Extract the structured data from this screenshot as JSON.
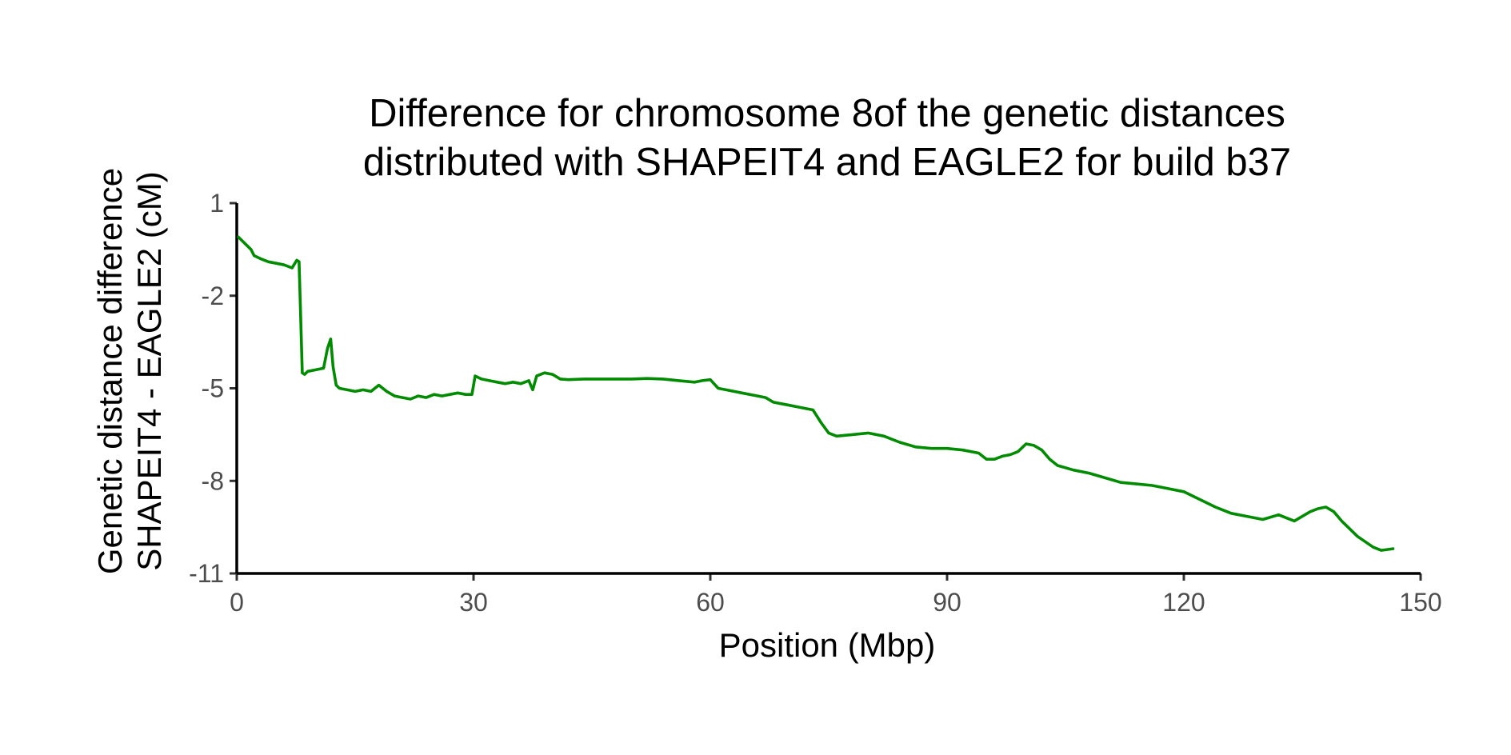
{
  "chart_data": {
    "type": "line",
    "title": [
      "Difference for chromosome 8of the genetic distances",
      "distributed with SHAPEIT4 and EAGLE2 for build b37"
    ],
    "xlabel": "Position (Mbp)",
    "ylabel": [
      "Genetic distance difference",
      "SHAPEIT4 - EAGLE2 (cM)"
    ],
    "xlim": [
      0,
      150
    ],
    "ylim": [
      -11,
      1
    ],
    "xticks": [
      0,
      30,
      60,
      90,
      120,
      150
    ],
    "xtick_labels": [
      "0",
      "30",
      "60",
      "90",
      "120",
      "150"
    ],
    "yticks": [
      1,
      -2,
      -5,
      -8,
      -11
    ],
    "ytick_labels": [
      "1",
      "-2",
      "-5",
      "-8",
      "-11"
    ],
    "grid": false,
    "legend": "none",
    "colors": {
      "series": "#008B00",
      "axis": "#000000",
      "tick_label": "#4d4d4d"
    },
    "series": [
      {
        "x": [
          0.2,
          1,
          1.8,
          2.2,
          3,
          4,
          5,
          6,
          7,
          7.6,
          7.9,
          8.3,
          8.6,
          9,
          10,
          11,
          11.5,
          11.9,
          12.2,
          12.6,
          13,
          14,
          15,
          16,
          17,
          18,
          19,
          20,
          21,
          22,
          23,
          24,
          25,
          26,
          27,
          28,
          29,
          29.8,
          30.2,
          31,
          32,
          33,
          34,
          35,
          36,
          37,
          37.5,
          38,
          39,
          40,
          41,
          42,
          44,
          46,
          48,
          50,
          52,
          54,
          56,
          58,
          59,
          60,
          61,
          62,
          64,
          66,
          67,
          68,
          69,
          70,
          71,
          72,
          73,
          74,
          75,
          76,
          78,
          80,
          82,
          84,
          86,
          88,
          90,
          92,
          94,
          95,
          96,
          97,
          98,
          99,
          100,
          101,
          102,
          103,
          104,
          106,
          108,
          110,
          112,
          114,
          116,
          118,
          120,
          122,
          124,
          126,
          128,
          130,
          132,
          134,
          136,
          137,
          138,
          139,
          140,
          142,
          144,
          145,
          146.5
        ],
        "y": [
          -0.1,
          -0.3,
          -0.5,
          -0.7,
          -0.8,
          -0.9,
          -0.95,
          -1.0,
          -1.1,
          -0.85,
          -0.9,
          -4.5,
          -4.55,
          -4.45,
          -4.4,
          -4.35,
          -3.7,
          -3.4,
          -4.3,
          -4.9,
          -5.0,
          -5.05,
          -5.1,
          -5.05,
          -5.1,
          -4.9,
          -5.1,
          -5.25,
          -5.3,
          -5.35,
          -5.25,
          -5.3,
          -5.2,
          -5.25,
          -5.2,
          -5.15,
          -5.2,
          -5.2,
          -4.6,
          -4.7,
          -4.75,
          -4.8,
          -4.85,
          -4.8,
          -4.85,
          -4.75,
          -5.05,
          -4.6,
          -4.5,
          -4.55,
          -4.7,
          -4.72,
          -4.7,
          -4.7,
          -4.7,
          -4.7,
          -4.68,
          -4.7,
          -4.75,
          -4.8,
          -4.75,
          -4.72,
          -5.0,
          -5.05,
          -5.15,
          -5.25,
          -5.3,
          -5.45,
          -5.5,
          -5.55,
          -5.6,
          -5.65,
          -5.7,
          -6.1,
          -6.45,
          -6.55,
          -6.5,
          -6.45,
          -6.55,
          -6.75,
          -6.9,
          -6.95,
          -6.95,
          -7.0,
          -7.1,
          -7.3,
          -7.3,
          -7.2,
          -7.15,
          -7.05,
          -6.8,
          -6.85,
          -7.0,
          -7.3,
          -7.5,
          -7.65,
          -7.75,
          -7.9,
          -8.05,
          -8.1,
          -8.15,
          -8.25,
          -8.35,
          -8.6,
          -8.85,
          -9.05,
          -9.15,
          -9.25,
          -9.1,
          -9.3,
          -9.0,
          -8.9,
          -8.85,
          -9.0,
          -9.3,
          -9.8,
          -10.15,
          -10.25,
          -10.2
        ]
      }
    ]
  }
}
